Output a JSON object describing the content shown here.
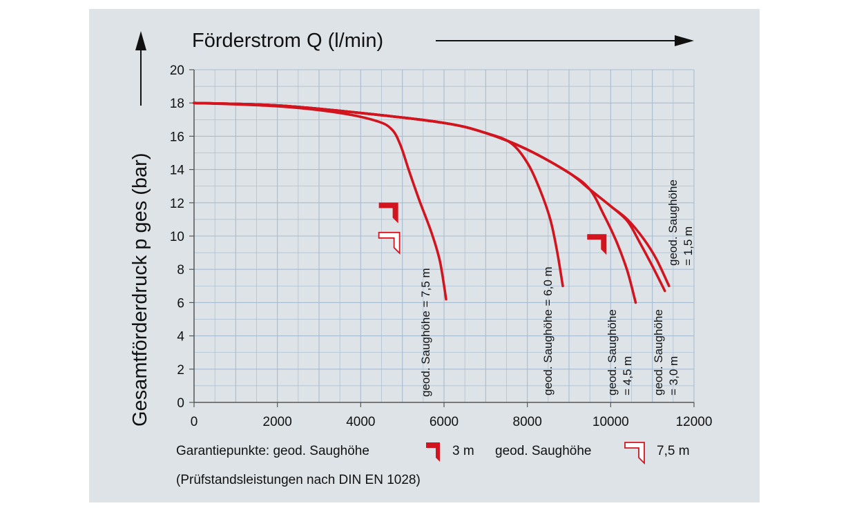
{
  "chart_data": {
    "type": "line",
    "xlabel": "Förderstrom Q (l/min)",
    "ylabel": "Gesamtförderdruck p ges (bar)",
    "xlim": [
      0,
      12000
    ],
    "ylim": [
      0,
      20
    ],
    "xticks": [
      0,
      2000,
      4000,
      6000,
      8000,
      10000,
      12000
    ],
    "yticks": [
      0,
      2,
      4,
      6,
      8,
      10,
      12,
      14,
      16,
      18,
      20
    ],
    "grid": true,
    "series": [
      {
        "name": "geod. Saughöhe = 7,5 m",
        "label_lines": [
          "geod. Saughöhe = 7,5 m"
        ],
        "x": [
          0,
          2000,
          3500,
          4400,
          4750,
          4950,
          5150,
          5400,
          5700,
          5900,
          6050
        ],
        "y": [
          18,
          17.8,
          17.4,
          16.9,
          16.4,
          15.5,
          14.0,
          12.2,
          10.2,
          8.5,
          6.2
        ]
      },
      {
        "name": "geod. Saughöhe = 6,0 m",
        "label_lines": [
          "geod. Saughöhe = 6,0 m"
        ],
        "x": [
          0,
          2000,
          4000,
          6000,
          7000,
          7600,
          8000,
          8300,
          8550,
          8720,
          8850
        ],
        "y": [
          18,
          17.85,
          17.4,
          16.8,
          16.2,
          15.6,
          14.4,
          12.8,
          11.0,
          9.0,
          7.0
        ]
      },
      {
        "name": "geod. Saughöhe = 4,5 m",
        "label_lines": [
          "geod. Saughöhe",
          "= 4,5 m"
        ],
        "x": [
          0,
          2000,
          4000,
          6000,
          7000,
          8000,
          9000,
          9500,
          9850,
          10150,
          10400,
          10600
        ],
        "y": [
          18,
          17.85,
          17.4,
          16.8,
          16.2,
          15.2,
          13.8,
          12.8,
          11.2,
          9.6,
          7.9,
          6.0
        ]
      },
      {
        "name": "geod. Saughöhe = 3,0 m",
        "label_lines": [
          "geod. Saughöhe",
          "= 3,0 m"
        ],
        "x": [
          0,
          2000,
          4000,
          6000,
          7000,
          8000,
          9000,
          9500,
          10000,
          10400,
          10700,
          11000,
          11300
        ],
        "y": [
          18,
          17.85,
          17.4,
          16.8,
          16.2,
          15.2,
          13.8,
          12.8,
          11.8,
          10.9,
          9.6,
          8.2,
          6.7
        ]
      },
      {
        "name": "geod. Saughöhe = 1,5 m",
        "label_lines": [
          "geod. Saughöhe",
          "= 1,5 m"
        ],
        "x": [
          0,
          2000,
          4000,
          6000,
          7000,
          8000,
          9000,
          9500,
          10000,
          10400,
          10800,
          11100,
          11400
        ],
        "y": [
          18,
          17.85,
          17.4,
          16.8,
          16.2,
          15.2,
          13.8,
          12.8,
          11.8,
          11.0,
          9.8,
          8.6,
          7.0
        ]
      }
    ],
    "guarantee_points": [
      {
        "kind": "3 m",
        "x": 4900,
        "y": 11.6
      },
      {
        "kind": "7,5 m",
        "x": 4900,
        "y": 9.8
      },
      {
        "kind": "3 m",
        "x": 9900,
        "y": 9.7
      }
    ],
    "legend": {
      "prefix": "Garantiepunkte: geod. Saughöhe",
      "item1_label": "3 m",
      "middle": "geod. Saughöhe",
      "item2_label": "7,5 m"
    },
    "note": "(Prüfstandsleistungen nach DIN EN 1028)"
  },
  "colors": {
    "curve": "#d2141e",
    "background": "#dde3e7",
    "grid": "#a7bcd0",
    "text": "#111111"
  }
}
